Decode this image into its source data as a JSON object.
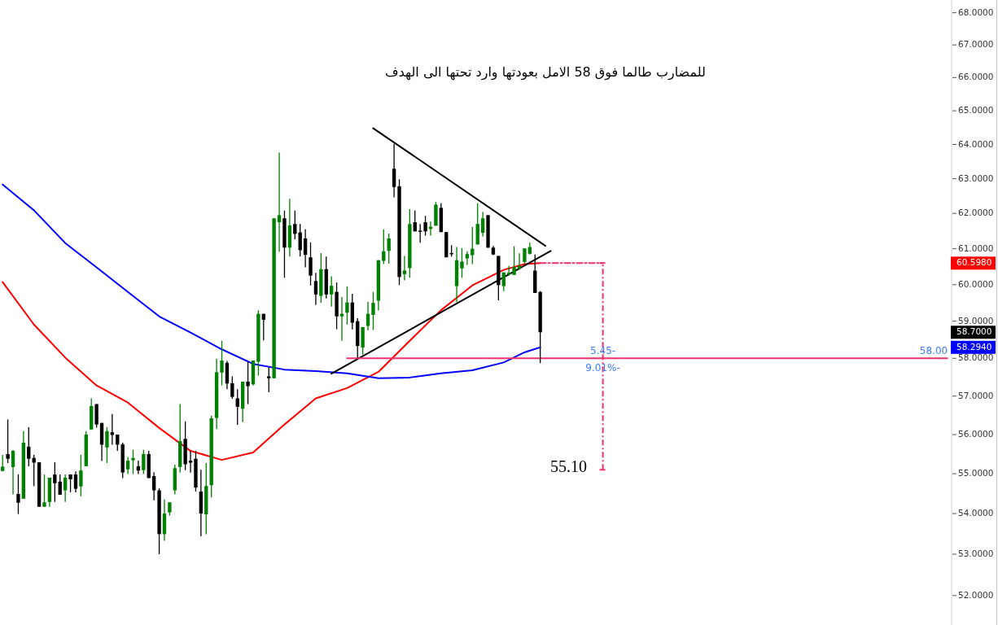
{
  "chart_data": {
    "type": "candlestick",
    "title": "للمضارب طالما فوق 58 الامل بعودتها وارد تحتها الى الهدف",
    "categories": [
      null,
      null,
      null,
      null,
      null,
      null,
      null,
      null,
      null,
      null,
      null,
      null,
      null,
      null,
      null,
      null,
      null,
      null,
      null,
      null,
      null,
      null,
      null,
      null,
      null,
      null,
      null,
      null,
      null,
      null,
      null,
      null,
      null,
      null,
      null,
      null,
      null,
      null,
      null,
      null,
      null,
      null,
      null,
      null,
      null,
      null,
      null,
      null,
      null,
      null,
      null,
      null,
      null,
      null,
      null,
      null,
      null,
      null,
      null,
      null,
      null,
      null,
      null,
      null,
      null,
      null,
      null,
      null,
      null,
      null,
      null,
      null,
      null,
      null,
      null,
      null,
      null,
      null,
      null,
      null,
      null,
      null,
      null,
      null,
      null,
      null,
      null,
      null,
      null,
      null,
      null,
      null,
      null,
      null,
      null,
      null,
      null,
      null,
      null,
      null,
      null,
      null,
      null,
      null,
      null,
      null,
      null,
      null,
      null,
      null,
      null,
      null,
      null,
      null,
      null,
      null,
      null,
      null,
      null,
      null,
      null,
      null,
      null,
      null,
      null,
      null,
      null,
      null,
      null,
      null,
      null,
      null,
      null,
      null,
      null,
      null,
      null,
      null,
      null,
      null,
      null,
      null,
      null,
      null,
      null,
      null,
      null,
      null,
      null,
      null,
      null,
      null,
      null,
      null,
      null,
      null,
      null,
      null,
      null,
      null,
      null,
      null,
      null,
      null,
      null,
      null,
      null,
      null,
      null,
      null,
      null,
      null,
      null,
      null,
      null,
      null,
      null,
      null,
      null,
      null,
      null,
      null
    ],
    "ohlc": [
      [
        55.07,
        55.48,
        55.06,
        55.18
      ],
      [
        55.5,
        56.39,
        55.27,
        55.38
      ],
      [
        55.17,
        55.6,
        54.48,
        55.58
      ],
      [
        54.49,
        54.98,
        53.99,
        54.27
      ],
      [
        54.37,
        56.09,
        54.37,
        55.79
      ],
      [
        55.69,
        56.19,
        55.19,
        55.38
      ],
      [
        55.4,
        55.48,
        54.69,
        55.28
      ],
      [
        55.29,
        55.29,
        54.17,
        54.17
      ],
      [
        54.17,
        54.98,
        54.17,
        54.28
      ],
      [
        54.29,
        54.9,
        54.17,
        54.9
      ],
      [
        54.98,
        55.29,
        54.29,
        54.76
      ],
      [
        54.8,
        54.98,
        54.47,
        54.47
      ],
      [
        54.58,
        54.98,
        54.29,
        54.9
      ],
      [
        54.98,
        54.98,
        54.53,
        54.86
      ],
      [
        54.98,
        55.06,
        54.53,
        54.62
      ],
      [
        54.68,
        55.48,
        54.43,
        55.08
      ],
      [
        55.19,
        56.09,
        55.19,
        56.0
      ],
      [
        56.13,
        56.94,
        56.13,
        56.74
      ],
      [
        56.79,
        56.79,
        56.18,
        56.26
      ],
      [
        56.3,
        56.3,
        55.32,
        55.74
      ],
      [
        55.67,
        56.19,
        55.27,
        56.09
      ],
      [
        56.06,
        56.53,
        55.74,
        55.99
      ],
      [
        56.0,
        56.0,
        55.58,
        55.74
      ],
      [
        55.75,
        55.79,
        54.89,
        55.03
      ],
      [
        55.11,
        55.42,
        54.99,
        55.33
      ],
      [
        55.34,
        55.61,
        54.99,
        55.4
      ],
      [
        55.19,
        55.33,
        54.99,
        55.08
      ],
      [
        55.09,
        55.61,
        54.99,
        55.5
      ],
      [
        55.5,
        55.58,
        54.89,
        54.89
      ],
      [
        54.94,
        55.04,
        54.33,
        54.58
      ],
      [
        54.58,
        54.63,
        53.0,
        53.49
      ],
      [
        53.49,
        54.35,
        53.33,
        54.0
      ],
      [
        54.03,
        54.28,
        53.95,
        54.28
      ],
      [
        54.58,
        55.23,
        54.48,
        55.14
      ],
      [
        55.17,
        56.79,
        55.03,
        55.83
      ],
      [
        55.89,
        56.34,
        55.09,
        55.24
      ],
      [
        55.33,
        55.58,
        55.03,
        55.28
      ],
      [
        55.38,
        55.58,
        54.55,
        54.65
      ],
      [
        54.55,
        55.1,
        53.44,
        54.0
      ],
      [
        53.98,
        55.27,
        53.49,
        54.69
      ],
      [
        54.71,
        56.49,
        54.4,
        56.42
      ],
      [
        56.43,
        57.99,
        56.14,
        57.63
      ],
      [
        57.62,
        58.47,
        57.28,
        57.94
      ],
      [
        57.88,
        57.93,
        57.18,
        57.33
      ],
      [
        57.34,
        57.52,
        56.93,
        56.98
      ],
      [
        56.94,
        57.18,
        56.25,
        56.72
      ],
      [
        56.67,
        57.38,
        56.32,
        57.38
      ],
      [
        57.38,
        57.91,
        56.79,
        57.26
      ],
      [
        57.31,
        57.94,
        57.28,
        57.94
      ],
      [
        57.91,
        59.3,
        57.54,
        59.2
      ],
      [
        59.2,
        59.2,
        58.48,
        59.04
      ],
      [
        57.52,
        57.77,
        57.1,
        57.47
      ],
      [
        57.47,
        61.86,
        57.47,
        61.86
      ],
      [
        61.75,
        63.76,
        60.92,
        61.95
      ],
      [
        61.86,
        62.08,
        60.19,
        61.03
      ],
      [
        61.03,
        62.42,
        60.78,
        61.66
      ],
      [
        61.7,
        62.08,
        61.27,
        61.42
      ],
      [
        61.46,
        61.7,
        60.78,
        60.96
      ],
      [
        61.29,
        61.55,
        60.48,
        60.83
      ],
      [
        60.76,
        61.18,
        59.98,
        60.25
      ],
      [
        60.1,
        60.33,
        59.44,
        59.73
      ],
      [
        59.69,
        60.88,
        59.5,
        60.43
      ],
      [
        60.43,
        60.78,
        59.62,
        59.73
      ],
      [
        59.73,
        60.23,
        59.4,
        59.97
      ],
      [
        59.8,
        60.06,
        58.78,
        59.13
      ],
      [
        59.13,
        59.66,
        58.47,
        59.2
      ],
      [
        59.23,
        59.95,
        58.91,
        59.51
      ],
      [
        59.51,
        59.75,
        58.78,
        58.96
      ],
      [
        59.0,
        59.08,
        58.01,
        58.33
      ],
      [
        58.29,
        58.84,
        58.1,
        58.84
      ],
      [
        58.87,
        59.53,
        58.75,
        59.2
      ],
      [
        59.17,
        59.8,
        58.76,
        59.5
      ],
      [
        59.56,
        60.68,
        59.29,
        60.68
      ],
      [
        60.66,
        61.55,
        60.57,
        60.93
      ],
      [
        60.94,
        61.43,
        60.58,
        61.29
      ],
      [
        63.29,
        64.02,
        62.46,
        62.76
      ],
      [
        62.78,
        62.98,
        59.99,
        60.21
      ],
      [
        60.29,
        60.8,
        60.12,
        60.39
      ],
      [
        60.46,
        62.12,
        60.19,
        61.7
      ],
      [
        61.75,
        62.08,
        61.49,
        61.49
      ],
      [
        61.51,
        61.7,
        61.17,
        61.51
      ],
      [
        61.75,
        61.93,
        61.37,
        61.49
      ],
      [
        61.56,
        61.77,
        61.37,
        61.62
      ],
      [
        61.65,
        62.33,
        61.65,
        62.25
      ],
      [
        62.16,
        62.29,
        61.47,
        61.47
      ],
      [
        61.47,
        61.47,
        60.76,
        60.76
      ],
      [
        60.88,
        61.1,
        60.78,
        60.88
      ],
      [
        59.96,
        61.05,
        59.52,
        60.68
      ],
      [
        60.45,
        61.02,
        60.19,
        60.64
      ],
      [
        60.73,
        60.93,
        60.55,
        60.85
      ],
      [
        60.82,
        61.61,
        60.57,
        61.0
      ],
      [
        61.12,
        62.29,
        61.12,
        61.7
      ],
      [
        61.45,
        62.04,
        61.34,
        61.86
      ],
      [
        61.95,
        61.95,
        61.03,
        61.03
      ],
      [
        61.03,
        61.08,
        60.82,
        60.84
      ],
      [
        60.8,
        60.8,
        59.57,
        59.99
      ],
      [
        59.96,
        60.34,
        59.82,
        60.34
      ],
      [
        60.29,
        60.52,
        60.25,
        60.33
      ],
      [
        60.27,
        61.07,
        60.27,
        60.49
      ],
      [
        60.44,
        60.87,
        60.41,
        60.52
      ],
      [
        60.63,
        61.01,
        60.59,
        61.01
      ],
      [
        60.86,
        61.17,
        60.84,
        61.05
      ],
      [
        60.39,
        60.84,
        59.77,
        59.77
      ],
      [
        59.8,
        59.82,
        57.87,
        58.7
      ],
      null,
      null,
      null,
      null,
      null,
      null,
      null,
      null,
      null,
      null,
      null,
      null,
      null,
      null,
      null,
      null,
      null,
      null,
      null,
      null,
      null,
      null,
      null,
      null,
      null,
      null,
      null,
      null,
      null,
      null,
      null,
      null,
      null,
      null,
      null,
      null,
      null,
      null,
      null,
      null,
      null,
      null,
      null,
      null,
      null,
      null,
      null,
      null,
      null,
      null,
      null,
      null,
      null,
      null,
      null,
      null,
      null,
      null,
      null,
      null,
      null,
      null,
      null,
      null,
      null,
      null,
      null,
      null,
      null,
      null,
      null,
      null,
      null,
      null,
      null,
      null,
      null,
      null
    ],
    "colors": [
      "#008000",
      "#000000",
      "#008000",
      "#000000",
      "#008000",
      "#000000",
      "#000000",
      "#000000",
      "#008000",
      "#008000",
      "#000000",
      "#000000",
      "#008000",
      "#000000",
      "#000000",
      "#008000",
      "#008000",
      "#008000",
      "#000000",
      "#000000",
      "#008000",
      "#000000",
      "#000000",
      "#000000",
      "#008000",
      "#008000",
      "#000000",
      "#008000",
      "#000000",
      "#000000",
      "#000000",
      "#008000",
      "#008000",
      "#008000",
      "#008000",
      "#000000",
      "#000000",
      "#000000",
      "#000000",
      "#008000",
      "#008000",
      "#008000",
      "#008000",
      "#000000",
      "#000000",
      "#000000",
      "#008000",
      "#000000",
      "#008000",
      "#008000",
      "#000000",
      "#000000",
      "#008000",
      "#008000",
      "#000000",
      "#008000",
      "#000000",
      "#000000",
      "#000000",
      "#000000",
      "#000000",
      "#008000",
      "#000000",
      "#008000",
      "#000000",
      "#008000",
      "#008000",
      "#000000",
      "#000000",
      "#008000",
      "#008000",
      "#008000",
      "#008000",
      "#008000",
      "#008000",
      "#000000",
      "#000000",
      "#008000",
      "#008000",
      "#000000",
      "#000000",
      "#000000",
      "#008000",
      "#008000",
      "#000000",
      "#000000",
      "#000000",
      "#008000",
      "#008000",
      "#008000",
      "#008000",
      "#008000",
      "#008000",
      "#000000",
      "#000000",
      "#000000",
      "#008000",
      "#008000",
      "#008000",
      "#008000",
      "#008000",
      "#008000",
      "#000000",
      "#000000",
      null,
      null,
      null,
      null,
      null,
      null,
      null,
      null,
      null,
      null,
      null,
      null,
      null,
      null,
      null,
      null,
      null,
      null,
      null,
      null,
      null,
      null,
      null,
      null,
      null,
      null,
      null,
      null,
      null,
      null,
      null,
      null,
      null,
      null,
      null,
      null,
      null,
      null,
      null,
      null,
      null,
      null,
      null,
      null,
      null,
      null,
      null,
      null,
      null,
      null,
      null,
      null,
      null,
      null,
      null,
      null,
      null,
      null,
      null,
      null,
      null,
      null,
      null,
      null,
      null,
      null,
      null,
      null,
      null,
      null,
      null,
      null,
      null,
      null,
      null,
      null,
      null,
      null
    ],
    "series": [
      {
        "type": "line",
        "color": "#ff0000",
        "values": [
          60.07,
          null,
          null,
          null,
          null,
          null,
          58.91,
          null,
          null,
          null,
          null,
          null,
          58.02,
          null,
          null,
          null,
          null,
          null,
          57.28,
          null,
          null,
          null,
          null,
          null,
          56.83,
          null,
          null,
          null,
          null,
          null,
          56.17,
          null,
          null,
          null,
          null,
          null,
          55.58,
          null,
          null,
          null,
          null,
          null,
          55.35,
          null,
          null,
          null,
          null,
          null,
          55.54,
          null,
          null,
          null,
          null,
          null,
          56.26,
          null,
          null,
          null,
          null,
          null,
          56.94,
          null,
          null,
          null,
          null,
          null,
          57.21,
          null,
          null,
          null,
          null,
          null,
          57.64,
          null,
          null,
          null,
          null,
          null,
          58.47,
          null,
          null,
          null,
          null,
          null,
          59.3,
          null,
          null,
          null,
          null,
          null,
          59.98,
          null,
          null,
          null,
          null,
          null,
          60.41,
          null,
          null,
          null,
          60.57,
          null,
          null,
          60.598,
          null,
          null,
          null,
          null,
          null,
          null,
          null,
          null,
          null,
          null,
          null,
          null,
          null,
          null,
          null,
          null,
          null,
          null,
          null,
          null,
          null,
          null,
          null,
          null,
          null,
          null,
          null,
          null,
          null,
          null,
          null,
          null,
          null,
          null,
          null,
          null,
          null,
          null,
          null,
          null,
          null,
          null,
          null,
          null,
          null,
          null,
          null,
          null,
          null,
          null,
          null,
          null,
          null,
          null,
          null,
          null,
          null,
          null,
          null,
          null,
          null,
          null,
          null,
          null,
          null,
          null,
          null,
          null,
          null,
          null,
          null,
          null,
          null,
          null,
          null,
          null,
          null,
          null
        ]
      },
      {
        "type": "line",
        "color": "#0000ff",
        "values": [
          62.83,
          null,
          null,
          null,
          null,
          null,
          62.09,
          null,
          null,
          null,
          null,
          null,
          61.16,
          null,
          null,
          null,
          null,
          null,
          60.48,
          null,
          null,
          null,
          null,
          null,
          59.8,
          null,
          null,
          null,
          null,
          null,
          59.13,
          null,
          null,
          null,
          null,
          null,
          58.69,
          null,
          null,
          null,
          null,
          null,
          58.24,
          null,
          null,
          null,
          null,
          null,
          57.85,
          null,
          null,
          null,
          null,
          null,
          57.7,
          null,
          null,
          null,
          null,
          null,
          57.66,
          null,
          null,
          null,
          null,
          null,
          57.6,
          null,
          null,
          null,
          null,
          null,
          57.47,
          null,
          null,
          null,
          null,
          null,
          57.49,
          null,
          null,
          null,
          null,
          null,
          57.6,
          null,
          null,
          null,
          null,
          null,
          57.68,
          null,
          null,
          null,
          null,
          null,
          57.89,
          null,
          null,
          null,
          58.16,
          null,
          null,
          58.294,
          null,
          null,
          null,
          null,
          null,
          null,
          null,
          null,
          null,
          null,
          null,
          null,
          null,
          null,
          null,
          null,
          null,
          null,
          null,
          null,
          null,
          null,
          null,
          null,
          null,
          null,
          null,
          null,
          null,
          null,
          null,
          null,
          null,
          null,
          null,
          null,
          null,
          null,
          null,
          null,
          null,
          null,
          null,
          null,
          null,
          null,
          null,
          null,
          null,
          null,
          null,
          null,
          null,
          null,
          null,
          null,
          null,
          null,
          null,
          null,
          null,
          null,
          null,
          null,
          null,
          null,
          null,
          null,
          null,
          null,
          null,
          null,
          null,
          null,
          null,
          null,
          null,
          null
        ]
      },
      {
        "type": "line",
        "color": "#000000",
        "values": [
          null,
          null,
          null,
          null,
          null,
          null,
          null,
          null,
          null,
          null,
          null,
          null,
          null,
          null,
          null,
          null,
          null,
          null,
          null,
          null,
          null,
          null,
          null,
          null,
          null,
          null,
          null,
          null,
          null,
          null,
          null,
          null,
          null,
          null,
          null,
          null,
          null,
          null,
          null,
          null,
          null,
          null,
          null,
          null,
          null,
          null,
          null,
          null,
          null,
          null,
          null,
          null,
          null,
          null,
          null,
          null,
          null,
          null,
          null,
          null,
          null,
          null,
          null,
          null,
          null,
          null,
          null,
          null,
          null,
          null,
          null,
          64.48,
          null,
          null,
          null,
          null,
          null,
          null,
          null,
          null,
          null,
          null,
          null,
          null,
          null,
          null,
          null,
          null,
          null,
          null,
          null,
          null,
          null,
          null,
          null,
          null,
          null,
          null,
          null,
          null,
          null,
          null,
          null,
          null,
          61.08,
          null,
          null,
          null,
          null,
          null,
          null,
          null,
          null,
          null,
          null,
          null,
          null,
          null,
          null,
          null,
          null,
          null,
          null,
          null,
          null,
          null,
          null,
          null,
          null,
          null,
          null,
          null,
          null,
          null,
          null,
          null,
          null,
          null,
          null,
          null,
          null,
          null,
          null,
          null,
          null,
          null,
          null,
          null,
          null,
          null,
          null,
          null,
          null,
          null,
          null,
          null,
          null,
          null,
          null,
          null,
          null,
          null,
          null,
          null,
          null,
          null,
          null,
          null,
          null,
          null,
          null,
          null,
          null,
          null,
          null,
          null,
          null,
          null,
          null,
          null,
          null,
          null
        ]
      },
      {
        "type": "line",
        "color": "#000000",
        "values": [
          null,
          null,
          null,
          null,
          null,
          null,
          null,
          null,
          null,
          null,
          null,
          null,
          null,
          null,
          null,
          null,
          null,
          null,
          null,
          null,
          null,
          null,
          null,
          null,
          null,
          null,
          null,
          null,
          null,
          null,
          null,
          null,
          null,
          null,
          null,
          null,
          null,
          null,
          null,
          null,
          null,
          null,
          null,
          null,
          null,
          null,
          null,
          null,
          null,
          null,
          null,
          null,
          null,
          null,
          null,
          null,
          null,
          null,
          null,
          null,
          null,
          null,
          null,
          57.59,
          null,
          null,
          null,
          null,
          null,
          null,
          null,
          null,
          null,
          null,
          null,
          null,
          null,
          null,
          null,
          null,
          null,
          null,
          null,
          null,
          null,
          null,
          null,
          null,
          null,
          null,
          null,
          null,
          null,
          null,
          null,
          null,
          null,
          null,
          null,
          null,
          null,
          null,
          null,
          null,
          null,
          60.94,
          null,
          null,
          null,
          null,
          null,
          null,
          null,
          null,
          null,
          null,
          null,
          null,
          null,
          null,
          null,
          null,
          null,
          null,
          null,
          null,
          null,
          null,
          null,
          null,
          null,
          null,
          null,
          null,
          null,
          null,
          null,
          null,
          null,
          null,
          null,
          null,
          null,
          null,
          null,
          null,
          null,
          null,
          null,
          null,
          null,
          null,
          null,
          null,
          null,
          null,
          null,
          null,
          null,
          null,
          null,
          null,
          null,
          null,
          null,
          null,
          null,
          null,
          null,
          null,
          null,
          null,
          null,
          null,
          null,
          null,
          null,
          null,
          null,
          null,
          null,
          null
        ]
      },
      {
        "type": "line",
        "color": "#f0306a",
        "values": [
          null,
          null,
          null,
          null,
          null,
          null,
          null,
          null,
          null,
          null,
          null,
          null,
          null,
          null,
          null,
          null,
          null,
          null,
          null,
          null,
          null,
          null,
          null,
          null,
          null,
          null,
          null,
          null,
          null,
          null,
          null,
          null,
          null,
          null,
          null,
          null,
          null,
          null,
          null,
          null,
          null,
          null,
          null,
          null,
          null,
          null,
          null,
          null,
          null,
          null,
          null,
          null,
          null,
          null,
          null,
          null,
          null,
          null,
          null,
          null,
          null,
          null,
          null,
          null,
          null,
          null,
          58,
          null,
          null,
          null,
          null,
          null,
          null,
          null,
          null,
          null,
          null,
          null,
          null,
          null,
          null,
          null,
          null,
          null,
          null,
          null,
          null,
          null,
          null,
          null,
          null,
          null,
          null,
          null,
          null,
          null,
          null,
          null,
          null,
          null,
          null,
          null,
          null,
          null,
          null,
          null,
          null,
          null,
          null,
          null,
          null,
          null,
          null,
          null,
          null,
          null,
          null,
          null,
          null,
          null,
          null,
          null,
          null,
          null,
          null,
          null,
          null,
          null,
          null,
          null,
          null,
          null,
          null,
          null,
          null,
          null,
          null,
          null,
          null,
          null,
          null,
          null,
          null,
          null,
          null,
          null,
          null,
          null,
          null,
          null,
          null,
          null,
          null,
          null,
          null,
          null,
          null,
          null,
          null,
          null,
          null,
          null,
          null,
          null,
          null,
          null,
          null,
          null,
          null,
          null,
          null,
          null,
          null,
          null,
          null,
          null,
          null,
          null,
          null,
          null,
          null,
          58
        ]
      },
      {
        "type": "line",
        "color": "#e8336b",
        "line_style": "dashed",
        "values": [
          null,
          null,
          null,
          null,
          null,
          null,
          null,
          null,
          null,
          null,
          null,
          null,
          null,
          null,
          null,
          null,
          null,
          null,
          null,
          null,
          null,
          null,
          null,
          null,
          null,
          null,
          null,
          null,
          null,
          null,
          null,
          null,
          null,
          null,
          null,
          null,
          null,
          null,
          null,
          null,
          null,
          null,
          null,
          null,
          null,
          null,
          null,
          null,
          null,
          null,
          null,
          null,
          null,
          null,
          null,
          null,
          null,
          null,
          null,
          null,
          null,
          null,
          null,
          null,
          null,
          null,
          null,
          null,
          null,
          null,
          null,
          null,
          null,
          null,
          null,
          null,
          null,
          null,
          null,
          null,
          null,
          null,
          null,
          null,
          null,
          null,
          null,
          null,
          null,
          null,
          null,
          null,
          null,
          null,
          null,
          null,
          null,
          null,
          null,
          null,
          null,
          null,
          null,
          60.6,
          null,
          null,
          null,
          null,
          null,
          null,
          null,
          null,
          null,
          null,
          null,
          60.6,
          null,
          null,
          null,
          null,
          null,
          null,
          null,
          null,
          null,
          null,
          null,
          null,
          null,
          null,
          null,
          null,
          null,
          null,
          null,
          null,
          null,
          null,
          null,
          null,
          null,
          null,
          null,
          null,
          null,
          null,
          null,
          null,
          null,
          null,
          null,
          null,
          null,
          null,
          null,
          null,
          null,
          null,
          null,
          null,
          null,
          null,
          null,
          null,
          null,
          null,
          null,
          null,
          null,
          null,
          null,
          null,
          null,
          null,
          null,
          null,
          null,
          null,
          null,
          null,
          null,
          null
        ],
        "errors": [
          null,
          null,
          null,
          null,
          null,
          null,
          null,
          null,
          null,
          null,
          null,
          null,
          null,
          null,
          null,
          null,
          null,
          null,
          null,
          null,
          null,
          null,
          null,
          null,
          null,
          null,
          null,
          null,
          null,
          null,
          null,
          null,
          null,
          null,
          null,
          null,
          null,
          null,
          null,
          null,
          null,
          null,
          null,
          null,
          null,
          null,
          null,
          null,
          null,
          null,
          null,
          null,
          null,
          null,
          null,
          null,
          null,
          null,
          null,
          null,
          null,
          null,
          null,
          null,
          null,
          null,
          null,
          null,
          null,
          null,
          null,
          null,
          null,
          null,
          null,
          null,
          null,
          null,
          null,
          null,
          null,
          null,
          null,
          null,
          null,
          null,
          null,
          null,
          null,
          null,
          null,
          null,
          null,
          null,
          null,
          null,
          null,
          null,
          null,
          null,
          null,
          null,
          null,
          null,
          null,
          null,
          null,
          null,
          null,
          null,
          null,
          null,
          null,
          null,
          null,
          [
            55.1,
            60.6
          ],
          null,
          null,
          null,
          null,
          null,
          null,
          null,
          null,
          null,
          null,
          null,
          null,
          null,
          null,
          null,
          null,
          null,
          null,
          null,
          null,
          null,
          null,
          null,
          null,
          null,
          null,
          null,
          null,
          null,
          null,
          null,
          null,
          null,
          null,
          null,
          null,
          null,
          null,
          null,
          null,
          null,
          null,
          null,
          null,
          null,
          null,
          null,
          null,
          null,
          null,
          null,
          null,
          null,
          null,
          null,
          null,
          null,
          null,
          null,
          null,
          null,
          null,
          null,
          null,
          null,
          null
        ]
      }
    ],
    "annotations": [
      "60.5980",
      "5.45-",
      "58.00",
      "58.7000",
      "9.01%-",
      "58.2940",
      "55.10"
    ],
    "ylim": [
      51.3,
      68.4
    ],
    "log": true,
    "tick_labels": "y",
    "yticks": [
      {
        "value": 52,
        "label": "52.0000"
      },
      {
        "value": 53,
        "label": "53.0000"
      },
      {
        "value": 54,
        "label": "54.0000"
      },
      {
        "value": 55,
        "label": "55.0000"
      },
      {
        "value": 56,
        "label": "56.0000"
      },
      {
        "value": 57,
        "label": "57.0000"
      },
      {
        "value": 58,
        "label": "58.0000"
      },
      {
        "value": 59,
        "label": "59.0000"
      },
      {
        "value": 60,
        "label": "60.0000"
      },
      {
        "value": 61,
        "label": "61.0000"
      },
      {
        "value": 62,
        "label": "62.0000"
      },
      {
        "value": 63,
        "label": "63.0000"
      },
      {
        "value": 64,
        "label": "64.0000"
      },
      {
        "value": 65,
        "label": "65.0000"
      },
      {
        "value": 66,
        "label": "66.0000"
      },
      {
        "value": 67,
        "label": "67.0000"
      },
      {
        "value": 68,
        "label": "68.0000"
      }
    ]
  }
}
